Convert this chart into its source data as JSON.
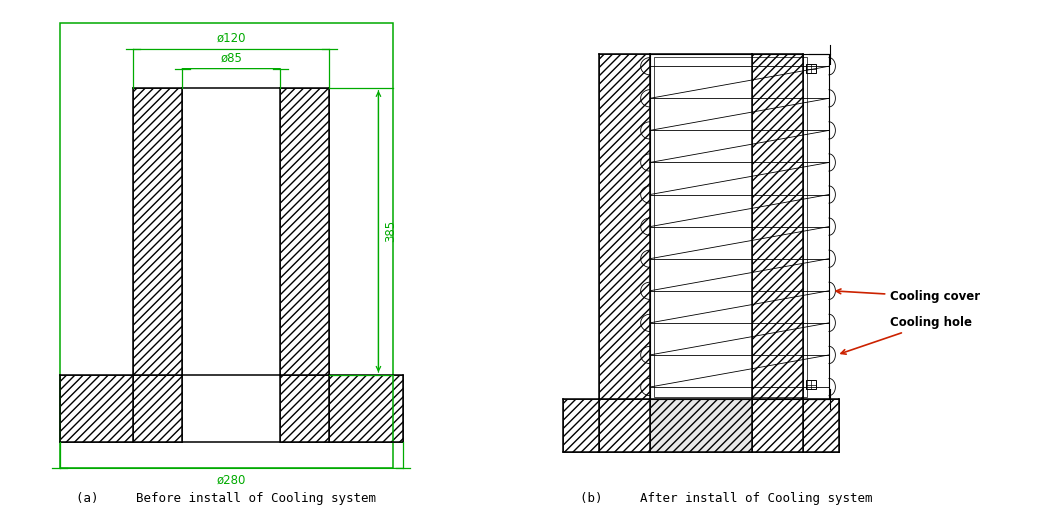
{
  "fig_width": 10.44,
  "fig_height": 5.32,
  "bg_color": "#ffffff",
  "line_color": "#000000",
  "green_color": "#00aa00",
  "red_color": "#cc2200",
  "label_a": "(a)     Before install of Cooling system",
  "label_b": "(b)     After install of Cooling system",
  "dim_120": "ø120",
  "dim_85": "ø85",
  "dim_385": "385",
  "dim_280": "ø280",
  "ann_hole": "Cooling hole",
  "ann_cover": "Cooling cover"
}
